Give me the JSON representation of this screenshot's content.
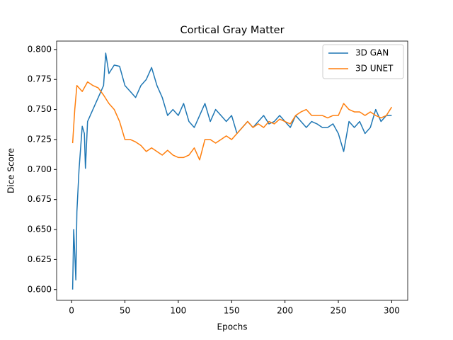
{
  "chart_data": {
    "type": "line",
    "title": "Cortical Gray Matter",
    "xlabel": "Epochs",
    "ylabel": "Dice Score",
    "xlim": [
      -14,
      315
    ],
    "xticks": [
      0,
      50,
      100,
      150,
      200,
      250,
      300
    ],
    "ylim": [
      0.591,
      0.807
    ],
    "yticks": [
      {
        "value": 0.6,
        "label": "0.600"
      },
      0.625,
      {
        "value": 0.65,
        "label": "0.650"
      },
      0.675,
      {
        "value": 0.7,
        "label": "0.700"
      },
      0.725,
      {
        "value": 0.75,
        "label": "0.750"
      },
      0.775,
      {
        "value": 0.8,
        "label": "0.800"
      }
    ],
    "legend": "upper right",
    "series": [
      {
        "name": "3D GAN",
        "color": "#1f77b4",
        "x": [
          1,
          2,
          3,
          4,
          5,
          7,
          10,
          12,
          13,
          15,
          20,
          25,
          30,
          32,
          35,
          40,
          45,
          50,
          55,
          60,
          65,
          70,
          75,
          80,
          85,
          90,
          95,
          100,
          105,
          110,
          115,
          120,
          125,
          130,
          135,
          140,
          145,
          150,
          155,
          160,
          165,
          170,
          175,
          180,
          185,
          190,
          195,
          200,
          205,
          210,
          215,
          220,
          225,
          230,
          235,
          240,
          245,
          250,
          255,
          260,
          265,
          270,
          275,
          280,
          285,
          290,
          295,
          300
        ],
        "values": [
          0.6,
          0.65,
          0.63,
          0.608,
          0.665,
          0.7,
          0.736,
          0.73,
          0.701,
          0.74,
          0.75,
          0.76,
          0.77,
          0.797,
          0.78,
          0.787,
          0.786,
          0.77,
          0.765,
          0.76,
          0.77,
          0.775,
          0.785,
          0.77,
          0.76,
          0.745,
          0.75,
          0.745,
          0.755,
          0.74,
          0.735,
          0.745,
          0.755,
          0.74,
          0.75,
          0.745,
          0.74,
          0.745,
          0.73,
          0.735,
          0.74,
          0.735,
          0.74,
          0.745,
          0.738,
          0.74,
          0.745,
          0.74,
          0.735,
          0.745,
          0.74,
          0.735,
          0.74,
          0.738,
          0.735,
          0.735,
          0.738,
          0.73,
          0.715,
          0.74,
          0.735,
          0.74,
          0.73,
          0.735,
          0.75,
          0.74,
          0.745,
          0.745
        ]
      },
      {
        "name": "3D UNET",
        "color": "#ff7f0e",
        "x": [
          1,
          3,
          5,
          10,
          15,
          20,
          25,
          30,
          35,
          40,
          45,
          50,
          55,
          60,
          65,
          70,
          75,
          80,
          85,
          90,
          95,
          100,
          105,
          110,
          115,
          120,
          125,
          130,
          135,
          140,
          145,
          150,
          155,
          160,
          165,
          170,
          175,
          180,
          185,
          190,
          195,
          200,
          205,
          210,
          215,
          220,
          225,
          230,
          235,
          240,
          245,
          250,
          255,
          260,
          265,
          270,
          275,
          280,
          285,
          290,
          295,
          300
        ],
        "values": [
          0.722,
          0.75,
          0.77,
          0.765,
          0.773,
          0.77,
          0.768,
          0.762,
          0.755,
          0.75,
          0.74,
          0.725,
          0.725,
          0.723,
          0.72,
          0.715,
          0.718,
          0.715,
          0.712,
          0.716,
          0.712,
          0.71,
          0.71,
          0.712,
          0.718,
          0.708,
          0.725,
          0.725,
          0.722,
          0.725,
          0.728,
          0.725,
          0.73,
          0.735,
          0.74,
          0.735,
          0.738,
          0.735,
          0.74,
          0.738,
          0.742,
          0.74,
          0.738,
          0.745,
          0.748,
          0.75,
          0.745,
          0.745,
          0.745,
          0.743,
          0.745,
          0.745,
          0.755,
          0.75,
          0.748,
          0.748,
          0.745,
          0.748,
          0.745,
          0.743,
          0.745,
          0.752
        ]
      }
    ]
  }
}
